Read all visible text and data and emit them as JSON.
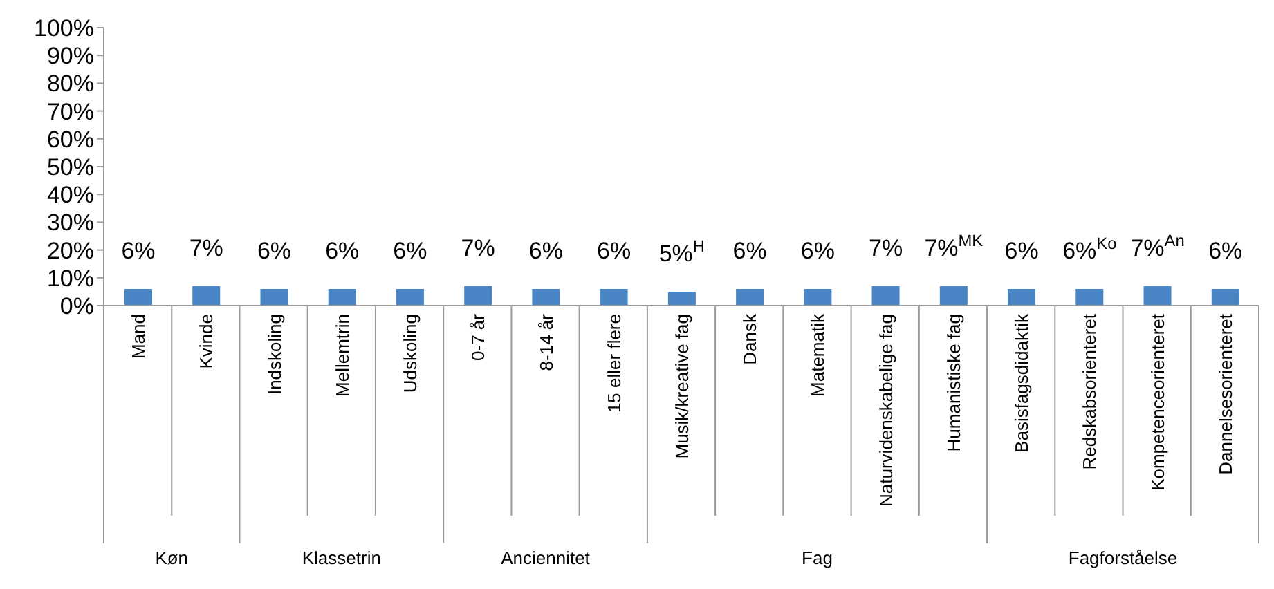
{
  "chart_data": {
    "type": "bar",
    "categories": [
      "Mand",
      "Kvinde",
      "Indskoling",
      "Mellemtrin",
      "Udskoling",
      "0-7 år",
      "8-14 år",
      "15 eller flere",
      "Musik/kreative fag",
      "Dansk",
      "Matematik",
      "Naturvidenskabelige fag",
      "Humanistiske fag",
      "Basisfagsdidaktik",
      "Redskabsorienteret",
      "Kompetenceorienteret",
      "Dannelsesorienteret"
    ],
    "values": [
      6,
      7,
      6,
      6,
      6,
      7,
      6,
      6,
      5,
      6,
      6,
      7,
      7,
      6,
      6,
      7,
      6
    ],
    "value_labels": [
      "6%",
      "7%",
      "6%",
      "6%",
      "6%",
      "7%",
      "6%",
      "6%",
      "5%$^{H}$",
      "6%",
      "6%",
      "7%",
      "7%$^{MK}$",
      "6%",
      "6%$^{Ko}$",
      "7%$^{An}$",
      "6%"
    ],
    "color": "#4a86c5",
    "ylim": [
      0,
      100
    ],
    "yticks": [
      {
        "value": 0,
        "label": "0%"
      },
      {
        "value": 10,
        "label": "10%"
      },
      {
        "value": 20,
        "label": "20%"
      },
      {
        "value": 30,
        "label": "30%"
      },
      {
        "value": 40,
        "label": "40%"
      },
      {
        "value": 50,
        "label": "50%"
      },
      {
        "value": 60,
        "label": "60%"
      },
      {
        "value": 70,
        "label": "70%"
      },
      {
        "value": 80,
        "label": "80%"
      },
      {
        "value": 90,
        "label": "90%"
      },
      {
        "value": 100,
        "label": "100%"
      }
    ],
    "annotations": [
      "Køn",
      "Klassetrin",
      "Anciennitet",
      "Fag",
      "Fagforståelse"
    ],
    "grid": false,
    "legend": false
  }
}
